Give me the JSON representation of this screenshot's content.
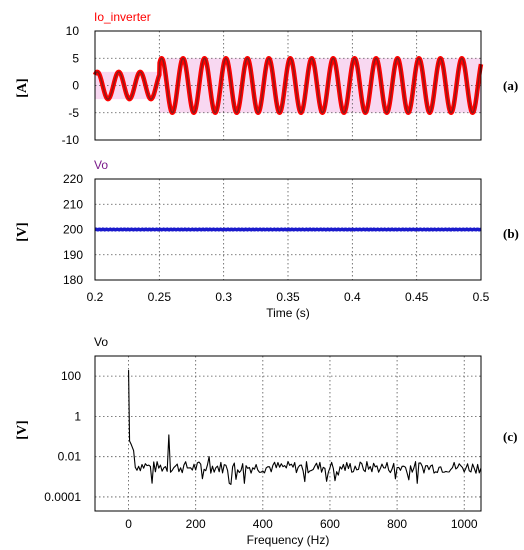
{
  "chart_data": [
    {
      "id": "a",
      "type": "line",
      "panel_label": "(a)",
      "series": [
        {
          "name": "Io_inverter",
          "color": "#8b1a1a",
          "envelope_color": "#ff0000",
          "shade_color": "#f2b8e6",
          "frequency_hz": 60,
          "segments": [
            {
              "t_start": 0.2,
              "t_end": 0.25,
              "amplitude": 2.5
            },
            {
              "t_start": 0.25,
              "t_end": 0.5,
              "amplitude": 5
            }
          ]
        }
      ],
      "ylabel": "[A]",
      "ylim": [
        -10,
        10
      ],
      "yticks": [
        10,
        5,
        0,
        -5,
        -10
      ],
      "xlim": [
        0.2,
        0.5
      ],
      "grid": true
    },
    {
      "id": "b",
      "type": "line",
      "panel_label": "(b)",
      "series": [
        {
          "name": "Vo",
          "color": "#1a1acc",
          "value": 200
        }
      ],
      "ylabel": "[V]",
      "ylim": [
        180,
        220
      ],
      "yticks": [
        220,
        210,
        200,
        190,
        180
      ],
      "xlim": [
        0.2,
        0.5
      ],
      "xticks": [
        0.2,
        0.25,
        0.3,
        0.35,
        0.4,
        0.45,
        0.5
      ],
      "xlabel": "Time (s)",
      "grid": true
    },
    {
      "id": "c",
      "type": "line",
      "panel_label": "(c)",
      "series": [
        {
          "name": "Vo",
          "color": "#000000",
          "peaks": [
            {
              "f": 0,
              "value": 200
            },
            {
              "f": 5,
              "value": 0.05
            },
            {
              "f": 120,
              "value": 0.12
            },
            {
              "f": 240,
              "value": 0.01
            }
          ],
          "noise_floor": 0.003
        }
      ],
      "ylabel": "[V]",
      "yscale": "log",
      "ylim": [
        2e-05,
        1000
      ],
      "yticks": [
        {
          "value": 100,
          "label": "100"
        },
        {
          "value": 1,
          "label": "1"
        },
        {
          "value": 0.01,
          "label": "0.01"
        },
        {
          "value": 0.0001,
          "label": "0.0001"
        }
      ],
      "xlim": [
        -100,
        1050
      ],
      "xticks": [
        0,
        200,
        400,
        600,
        800,
        1000
      ],
      "xlabel": "Frequency (Hz)",
      "grid": true
    }
  ]
}
